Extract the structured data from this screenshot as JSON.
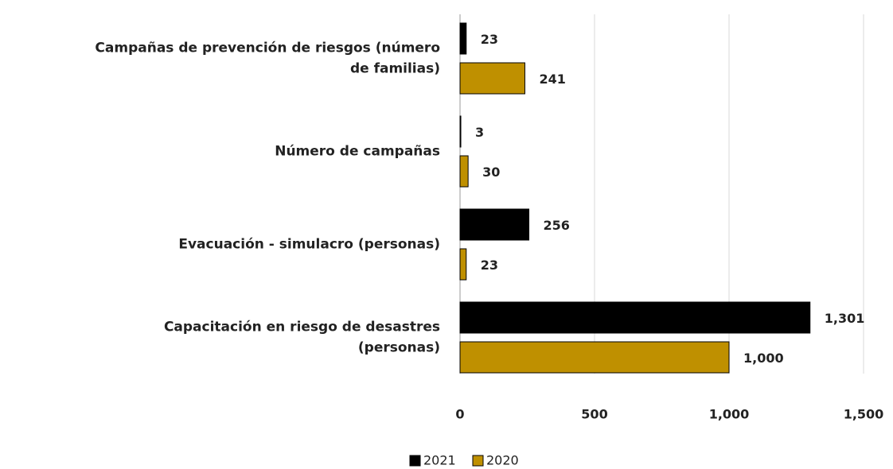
{
  "chart_data": {
    "type": "bar",
    "orientation": "horizontal",
    "categories": [
      "Campañas de prevención de riesgos (número de familias)",
      "Número de campañas",
      "Evacuación - simulacro (personas)",
      "Capacitación en riesgo de desastres (personas)"
    ],
    "series": [
      {
        "name": "2021",
        "color": "#000000",
        "values": [
          23,
          3,
          256,
          1301
        ],
        "value_labels": [
          "23",
          "3",
          "256",
          "1,301"
        ]
      },
      {
        "name": "2020",
        "color": "#bf9000",
        "values": [
          241,
          30,
          23,
          1000
        ],
        "value_labels": [
          "241",
          "30",
          "23",
          "1,000"
        ]
      }
    ],
    "xlim": [
      0,
      1500
    ],
    "xticks": [
      0,
      500,
      {
        "value": 1000,
        "label": "1,000"
      },
      {
        "value": 1500,
        "label": "1,500"
      }
    ],
    "grid": true,
    "legend": "bottom"
  }
}
